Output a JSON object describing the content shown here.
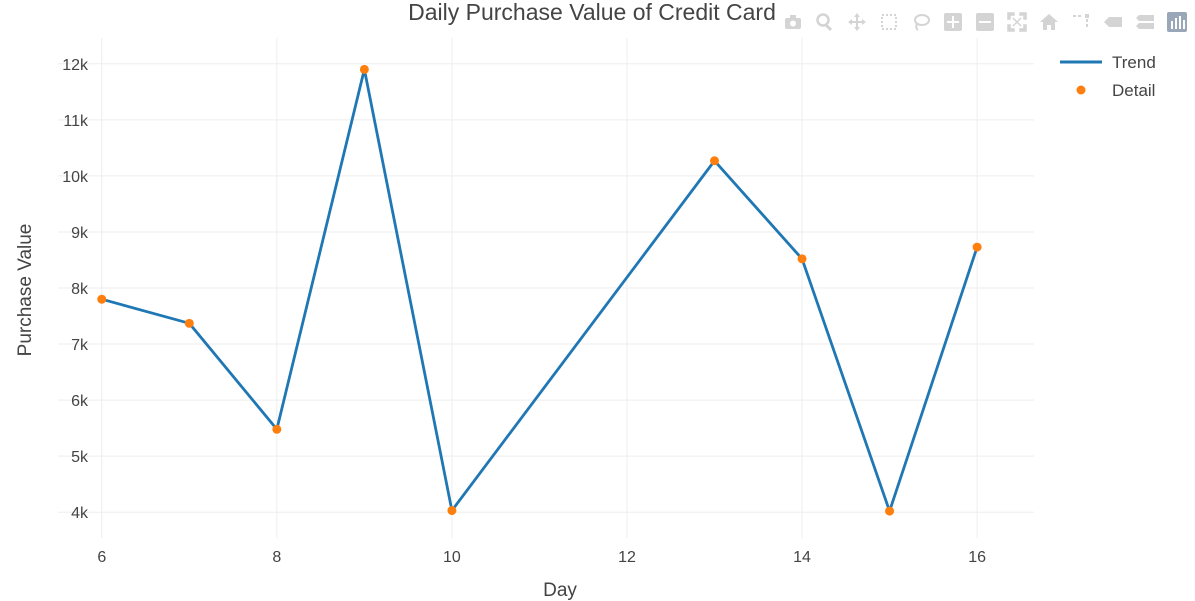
{
  "chart_data": {
    "type": "line",
    "title": "Daily Purchase Value of Credit Card",
    "xlabel": "Day",
    "ylabel": "Purchase Value",
    "x": [
      6,
      7,
      8,
      9,
      10,
      13,
      14,
      15,
      16
    ],
    "series": [
      {
        "name": "Trend",
        "mode": "line",
        "color": "#1f77b4",
        "values": [
          7800,
          7370,
          5480,
          11900,
          4030,
          10270,
          8520,
          4020,
          8730
        ]
      },
      {
        "name": "Detail",
        "mode": "markers",
        "color": "#ff7f0e",
        "values": [
          7800,
          7370,
          5480,
          11900,
          4030,
          10270,
          8520,
          4020,
          8730
        ]
      }
    ],
    "xlim": [
      5.5,
      16.65
    ],
    "ylim": [
      3540,
      12460
    ],
    "xticks": [
      6,
      8,
      10,
      12,
      14,
      16
    ],
    "xtick_labels": [
      "6",
      "8",
      "10",
      "12",
      "14",
      "16"
    ],
    "yticks": [
      4000,
      5000,
      6000,
      7000,
      8000,
      9000,
      10000,
      11000,
      12000
    ],
    "ytick_labels": [
      "4k",
      "5k",
      "6k",
      "7k",
      "8k",
      "9k",
      "10k",
      "11k",
      "12k"
    ],
    "grid": true,
    "legend_position": "top-right"
  },
  "modebar": {
    "icons": [
      "camera-icon",
      "zoom-icon",
      "pan-icon",
      "box-select-icon",
      "lasso-select-icon",
      "zoom-in-icon",
      "zoom-out-icon",
      "autoscale-icon",
      "reset-axes-icon",
      "spike-lines-icon",
      "hover-closest-icon",
      "hover-compare-icon",
      "plotly-logo-icon"
    ]
  }
}
